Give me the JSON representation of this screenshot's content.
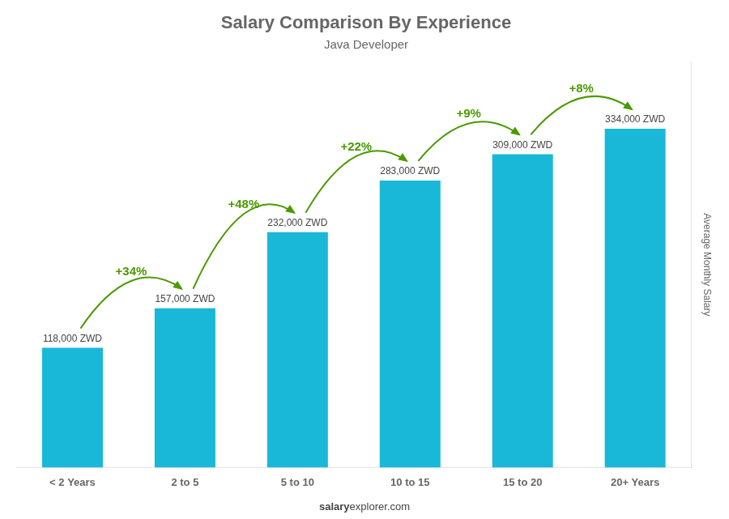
{
  "chart_data": {
    "type": "bar",
    "title": "Salary Comparison By Experience",
    "subtitle": "Java Developer",
    "ylabel": "Average Monthly Salary",
    "categories": [
      "< 2 Years",
      "2 to 5",
      "5 to 10",
      "10 to 15",
      "15 to 20",
      "20+ Years"
    ],
    "values": [
      118000,
      157000,
      232000,
      283000,
      309000,
      334000
    ],
    "value_labels": [
      "118,000 ZWD",
      "157,000 ZWD",
      "232,000 ZWD",
      "283,000 ZWD",
      "309,000 ZWD",
      "334,000 ZWD"
    ],
    "data_labels": true,
    "annotations": [
      "+34%",
      "+48%",
      "+22%",
      "+9%",
      "+8%"
    ],
    "footer": [
      "salary",
      "explorer.com"
    ],
    "color": "#1ab8d8",
    "ylim": [
      0,
      400000
    ],
    "grid": false,
    "tick_labels": "x"
  }
}
